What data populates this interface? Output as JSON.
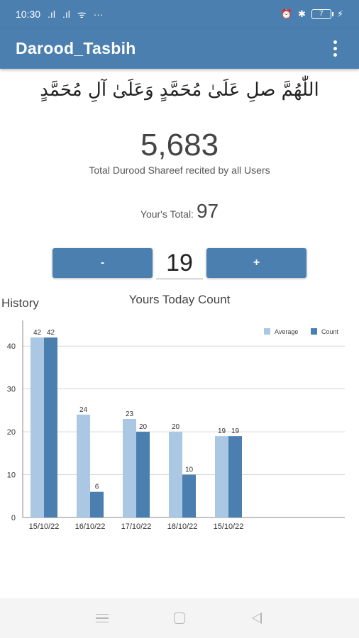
{
  "status_bar": {
    "time": "10:30",
    "signal1": ".ıl",
    "signal2": ".ıl",
    "wifi": "ᯤ",
    "more": "···",
    "alarm": "⏰",
    "bluetooth": "✱",
    "battery": "7",
    "charging": "⚡"
  },
  "app_bar": {
    "title": "Darood_Tasbih",
    "menu_icon": "more-vert-icon"
  },
  "main": {
    "arabic_text": "اللّٰهُمَّ صلِ عَلَىٰ مُحَمَّدٍ وَعَلَىٰ آلِ مُحَمَّدٍ",
    "total_count": "5,683",
    "total_label": "Total Durood Shareef recited by all Users",
    "your_total_label": "Your's Total:",
    "your_total_value": "97",
    "minus_label": "-",
    "plus_label": "+",
    "counter_value": "19"
  },
  "history_label": "History",
  "chart_data": {
    "type": "bar",
    "title": "Yours Today Count",
    "categories": [
      "15/10/22",
      "16/10/22",
      "17/10/22",
      "18/10/22",
      "15/10/22"
    ],
    "series": [
      {
        "name": "Average",
        "values": [
          42,
          24,
          23,
          20,
          19
        ],
        "color": "#aac8e4"
      },
      {
        "name": "Count",
        "values": [
          42,
          6,
          20,
          10,
          19
        ],
        "color": "#4a7fb0"
      }
    ],
    "yticks": [
      0,
      10,
      20,
      30,
      40
    ],
    "ylim": [
      0,
      45
    ],
    "legend": "top-right",
    "grid": true
  },
  "nav_bar": {
    "menu_icon": "menu-icon",
    "home_icon": "home-icon",
    "back_icon": "back-icon"
  }
}
